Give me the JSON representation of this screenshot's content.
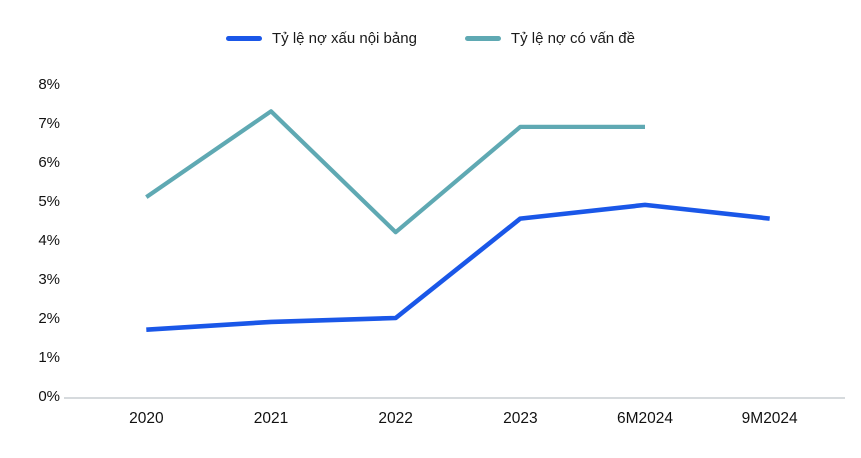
{
  "chart_data": {
    "type": "line",
    "title": "",
    "categories": [
      "2020",
      "2021",
      "2022",
      "2023",
      "6M2024",
      "9M2024"
    ],
    "series": [
      {
        "name": "Tỷ lệ nợ xấu nội bảng",
        "color": "#1A57E8",
        "values": [
          1.7,
          1.9,
          2.0,
          4.55,
          4.9,
          4.55
        ]
      },
      {
        "name": "Tỷ lệ nợ có vấn đề",
        "color": "#5FA9B3",
        "values": [
          5.1,
          7.3,
          4.2,
          6.9,
          6.9,
          null
        ]
      }
    ],
    "ylim": [
      0,
      8
    ],
    "ytick_step": 1,
    "ytick_labels": [
      "0%",
      "1%",
      "2%",
      "3%",
      "4%",
      "5%",
      "6%",
      "7%",
      "8%"
    ],
    "legend_position": "top",
    "grid": false
  },
  "colors": {
    "background": "#ffffff",
    "axis_line": "#c8cdd2",
    "tick_text": "#111111"
  }
}
